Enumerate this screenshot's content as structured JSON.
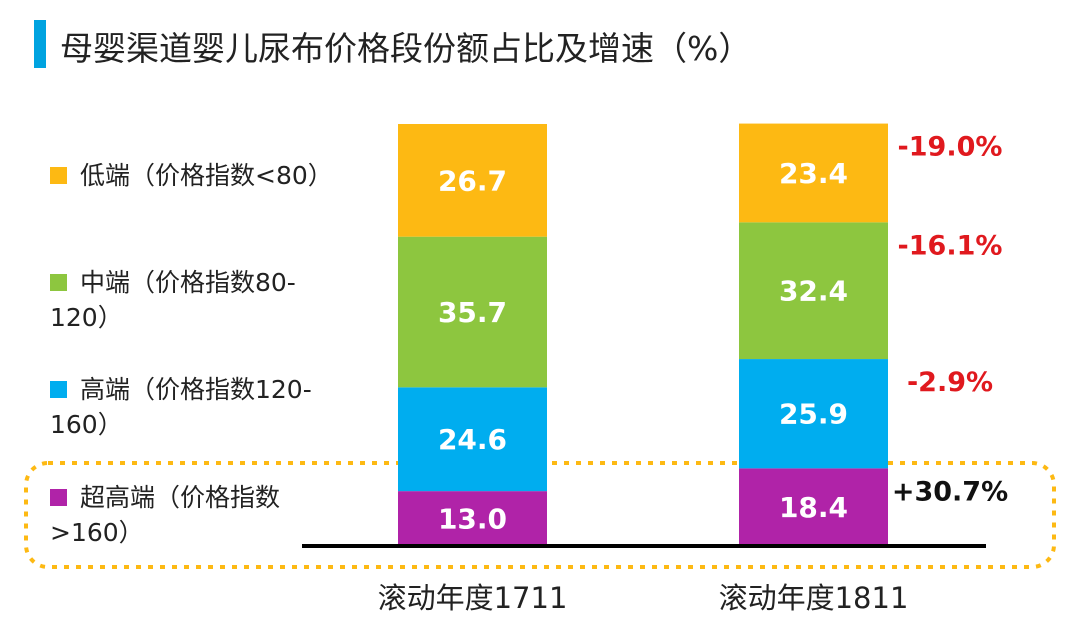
{
  "title": "母婴渠道婴儿尿布价格段份额占比及增速（%）",
  "chart_data": {
    "type": "bar",
    "stacked": true,
    "categories": [
      "滚动年度1711",
      "滚动年度1811"
    ],
    "series": [
      {
        "name": "超高端（价格指数>160）",
        "color": "#b023a8",
        "values": [
          13.0,
          18.4
        ],
        "growth": "+30.7%",
        "growth_color": "#111111"
      },
      {
        "name": "高端（价格指数120-160）",
        "color": "#00adef",
        "values": [
          24.6,
          25.9
        ],
        "growth": "-2.9%",
        "growth_color": "#e0191e"
      },
      {
        "name": "中端（价格指数80-120）",
        "color": "#8dc63f",
        "values": [
          35.7,
          32.4
        ],
        "growth": "-16.1%",
        "growth_color": "#e0191e"
      },
      {
        "name": "低端（价格指数<80）",
        "color": "#fdb913",
        "values": [
          26.7,
          23.4
        ],
        "growth": "-19.0%",
        "growth_color": "#e0191e"
      }
    ],
    "legend_lines": [
      [
        "低端（价格指数<80）"
      ],
      [
        "中端（价格指数80-",
        "120）"
      ],
      [
        "高端（价格指数120-",
        "160）"
      ],
      [
        "超高端（价格指数",
        ">160）"
      ]
    ],
    "highlight": "超高端（价格指数>160）",
    "ylim": [
      0,
      100
    ]
  }
}
